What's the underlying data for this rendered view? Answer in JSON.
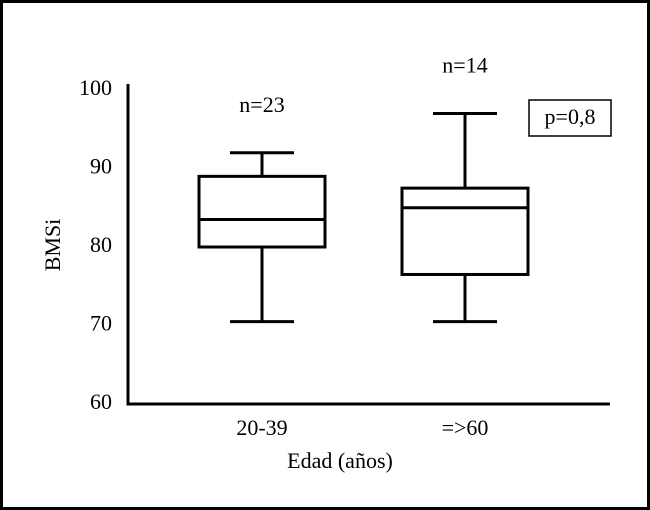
{
  "chart_data": {
    "type": "box",
    "x_label": "Edad (años)",
    "y_label": "BMSi",
    "categories": [
      "20-39",
      "=>60"
    ],
    "boxes": [
      {
        "whisker_low": 70.5,
        "q1": 80,
        "median": 83.5,
        "q3": 89,
        "whisker_high": 92
      },
      {
        "whisker_low": 70.5,
        "q1": 76.5,
        "median": 85,
        "q3": 87.5,
        "whisker_high": 97
      }
    ],
    "group_labels": [
      "n=23",
      "n=14"
    ],
    "annotation": "p=0,8",
    "color": "#000000",
    "ylim": [
      60,
      100
    ],
    "yticks": [
      60,
      70,
      80,
      90,
      100
    ]
  }
}
